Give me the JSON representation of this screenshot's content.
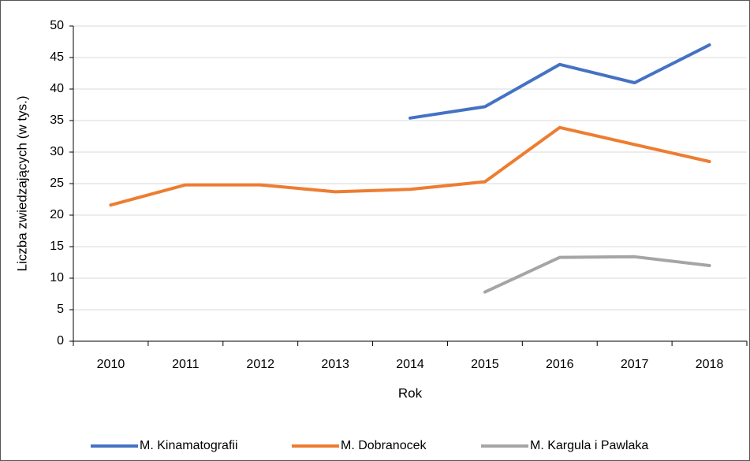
{
  "chart_data": {
    "type": "line",
    "x_label": "Rok",
    "y_label": "Liczba zwiedzających (w tys.)",
    "categories": [
      "2010",
      "2011",
      "2012",
      "2013",
      "2014",
      "2015",
      "2016",
      "2017",
      "2018"
    ],
    "series": [
      {
        "name": "M. Kinamatografii",
        "color": "#4472c4",
        "values": [
          null,
          null,
          null,
          null,
          35.4,
          37.2,
          43.9,
          41.0,
          47.0
        ]
      },
      {
        "name": "M. Dobranocek",
        "color": "#ed7d31",
        "values": [
          21.6,
          24.8,
          24.8,
          23.7,
          24.1,
          25.3,
          33.9,
          31.2,
          28.5
        ]
      },
      {
        "name": "M. Kargula i Pawlaka",
        "color": "#a5a5a5",
        "values": [
          null,
          null,
          null,
          null,
          null,
          7.8,
          13.3,
          13.4,
          12.0
        ]
      }
    ],
    "ylim": [
      0,
      50
    ],
    "yticks": [
      0,
      5,
      10,
      15,
      20,
      25,
      30,
      35,
      40,
      45,
      50
    ],
    "grid": true,
    "legend": "bottom"
  }
}
